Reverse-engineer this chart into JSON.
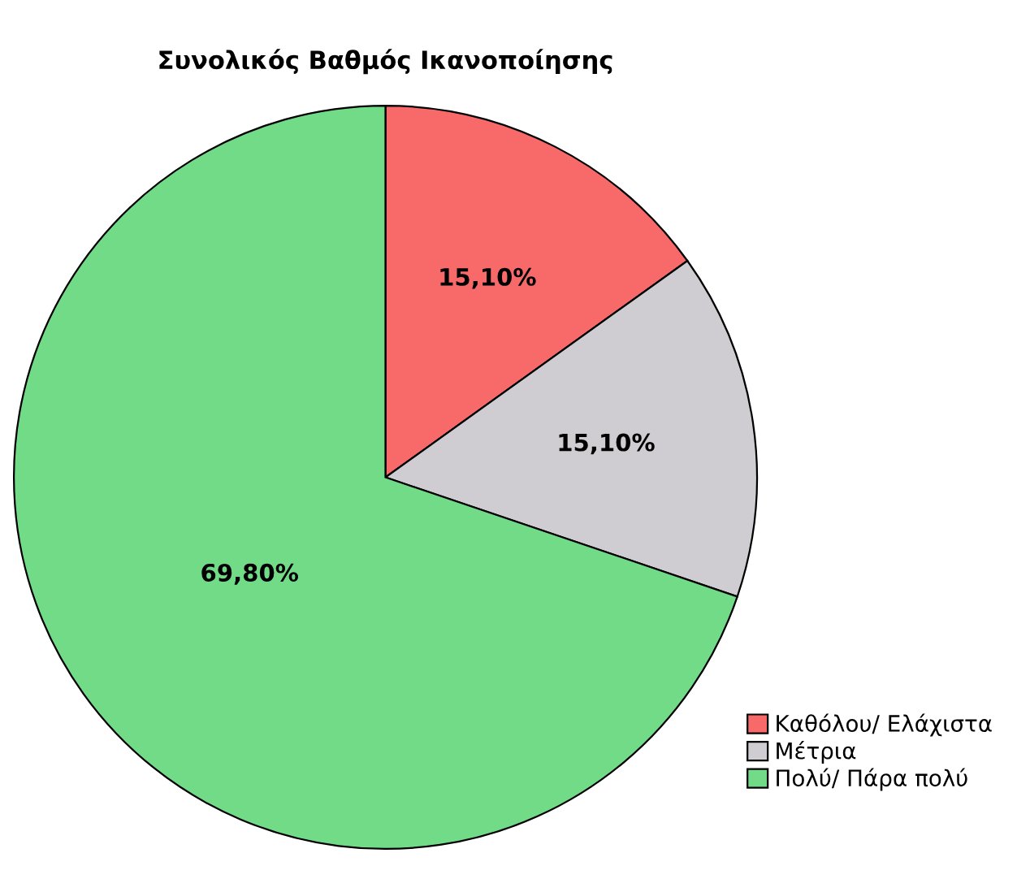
{
  "chart_data": {
    "type": "pie",
    "title": "Συνολικός Βαθμός Ικανοποίησης",
    "categories": [
      "Καθόλου/ Ελάχιστα",
      "Μέτρια",
      "Πολύ/ Πάρα πολύ"
    ],
    "values": [
      15.1,
      15.1,
      69.8
    ],
    "value_labels": [
      "15,10%",
      "15,10%",
      "69,80%"
    ],
    "colors": [
      "#f86a6a",
      "#cfcdd1",
      "#72db88"
    ],
    "legend": "bottom right"
  }
}
